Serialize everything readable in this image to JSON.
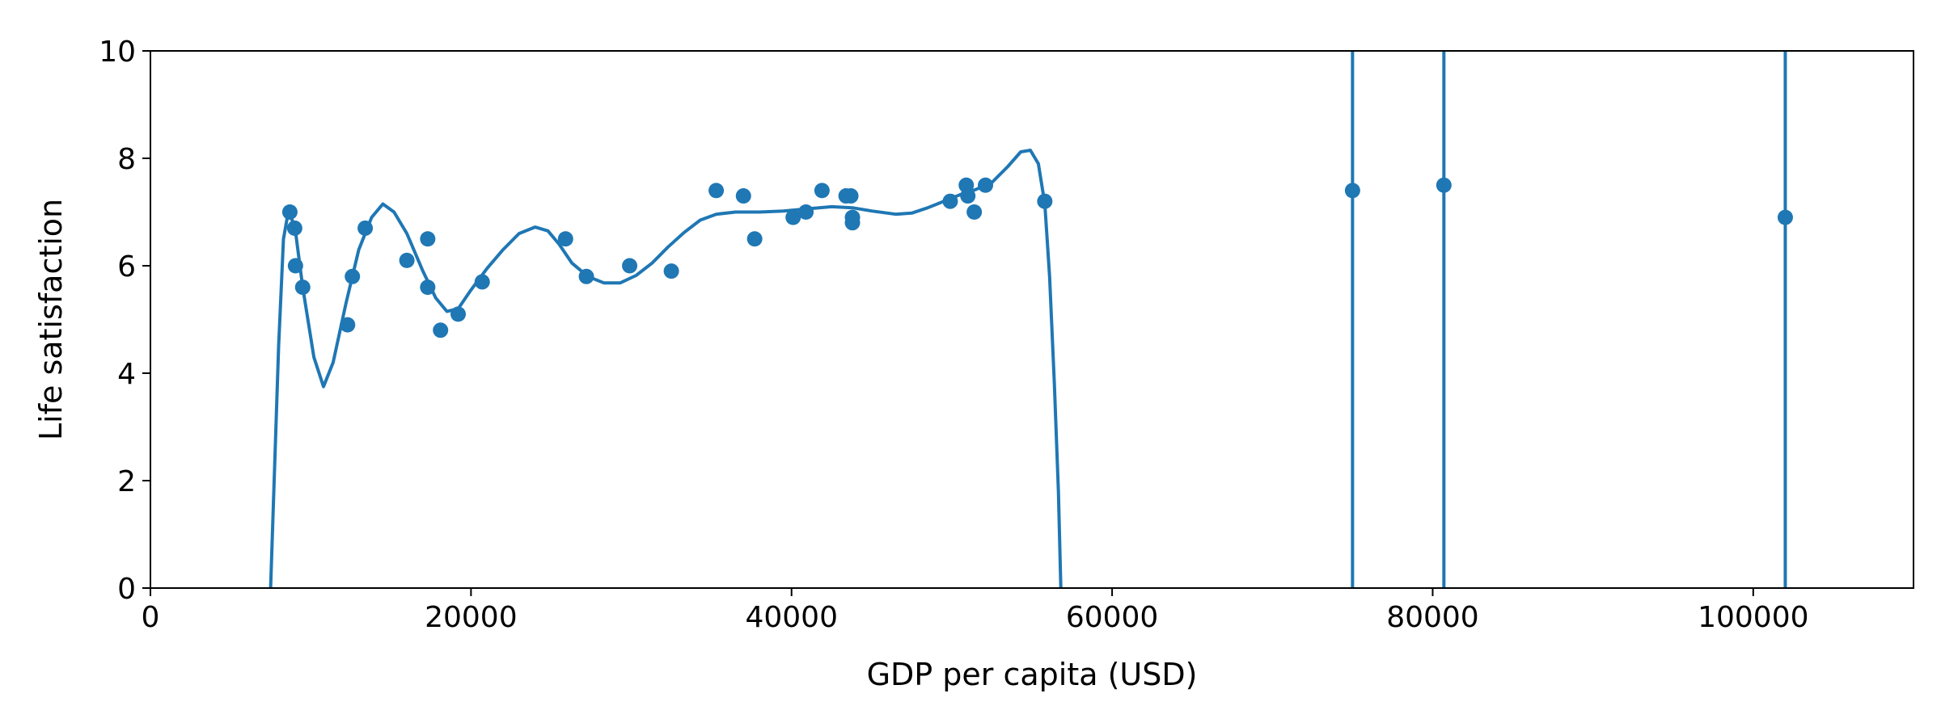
{
  "chart_data": {
    "type": "scatter",
    "title": "",
    "xlabel": "GDP per capita (USD)",
    "ylabel": "Life satisfaction",
    "xlim": [
      0,
      110000
    ],
    "ylim": [
      0,
      10
    ],
    "xticks": [
      0,
      20000,
      40000,
      60000,
      80000,
      100000
    ],
    "xtick_labels": [
      "0",
      "20000",
      "40000",
      "60000",
      "80000",
      "100000"
    ],
    "yticks": [
      0,
      2,
      4,
      6,
      8,
      10
    ],
    "ytick_labels": [
      "0",
      "2",
      "4",
      "6",
      "8",
      "10"
    ],
    "grid": false,
    "color": "#1f77b4",
    "series": [
      {
        "type": "scatter",
        "points": [
          [
            8700,
            7.0
          ],
          [
            9000,
            6.7
          ],
          [
            9050,
            6.0
          ],
          [
            9500,
            5.6
          ],
          [
            12300,
            4.9
          ],
          [
            12600,
            5.8
          ],
          [
            13400,
            6.7
          ],
          [
            16000,
            6.1
          ],
          [
            17300,
            6.5
          ],
          [
            17300,
            5.6
          ],
          [
            18100,
            4.8
          ],
          [
            19200,
            5.1
          ],
          [
            20700,
            5.7
          ],
          [
            25900,
            6.5
          ],
          [
            27200,
            5.8
          ],
          [
            29900,
            6.0
          ],
          [
            32500,
            5.9
          ],
          [
            35300,
            7.4
          ],
          [
            37000,
            7.3
          ],
          [
            37700,
            6.5
          ],
          [
            40100,
            6.9
          ],
          [
            40900,
            7.0
          ],
          [
            41900,
            7.4
          ],
          [
            43400,
            7.3
          ],
          [
            43700,
            7.3
          ],
          [
            43800,
            6.9
          ],
          [
            43800,
            6.8
          ],
          [
            49900,
            7.2
          ],
          [
            50900,
            7.5
          ],
          [
            51000,
            7.3
          ],
          [
            51400,
            7.0
          ],
          [
            52100,
            7.5
          ],
          [
            55800,
            7.2
          ],
          [
            75000,
            7.4
          ],
          [
            80700,
            7.5
          ],
          [
            102000,
            6.9
          ]
        ]
      },
      {
        "type": "line",
        "points": [
          [
            7500,
            0.0
          ],
          [
            8000,
            4.5
          ],
          [
            8300,
            6.5
          ],
          [
            8600,
            7.0
          ],
          [
            9000,
            6.75
          ],
          [
            9500,
            5.6
          ],
          [
            10200,
            4.3
          ],
          [
            10800,
            3.75
          ],
          [
            11400,
            4.2
          ],
          [
            12200,
            5.3
          ],
          [
            13000,
            6.3
          ],
          [
            13800,
            6.9
          ],
          [
            14500,
            7.15
          ],
          [
            15200,
            7.0
          ],
          [
            16000,
            6.6
          ],
          [
            17000,
            5.9
          ],
          [
            17800,
            5.4
          ],
          [
            18500,
            5.15
          ],
          [
            19200,
            5.2
          ],
          [
            20000,
            5.55
          ],
          [
            21000,
            5.95
          ],
          [
            22000,
            6.3
          ],
          [
            23000,
            6.6
          ],
          [
            24000,
            6.72
          ],
          [
            24800,
            6.65
          ],
          [
            25500,
            6.4
          ],
          [
            26300,
            6.05
          ],
          [
            27300,
            5.8
          ],
          [
            28300,
            5.68
          ],
          [
            29300,
            5.68
          ],
          [
            30300,
            5.82
          ],
          [
            31300,
            6.05
          ],
          [
            32300,
            6.35
          ],
          [
            33300,
            6.62
          ],
          [
            34300,
            6.85
          ],
          [
            35300,
            6.96
          ],
          [
            36500,
            7.0
          ],
          [
            38000,
            7.0
          ],
          [
            39500,
            7.02
          ],
          [
            41000,
            7.06
          ],
          [
            42500,
            7.1
          ],
          [
            43800,
            7.08
          ],
          [
            45000,
            7.02
          ],
          [
            46500,
            6.96
          ],
          [
            47500,
            6.98
          ],
          [
            48500,
            7.08
          ],
          [
            49500,
            7.2
          ],
          [
            50500,
            7.32
          ],
          [
            51500,
            7.42
          ],
          [
            52500,
            7.55
          ],
          [
            53500,
            7.85
          ],
          [
            54300,
            8.12
          ],
          [
            54900,
            8.15
          ],
          [
            55400,
            7.9
          ],
          [
            55800,
            7.15
          ],
          [
            56100,
            5.8
          ],
          [
            56400,
            3.8
          ],
          [
            56650,
            1.8
          ],
          [
            56800,
            0.0
          ]
        ]
      },
      {
        "type": "vertical_lines",
        "x": [
          75000,
          80700,
          102000
        ]
      }
    ]
  }
}
